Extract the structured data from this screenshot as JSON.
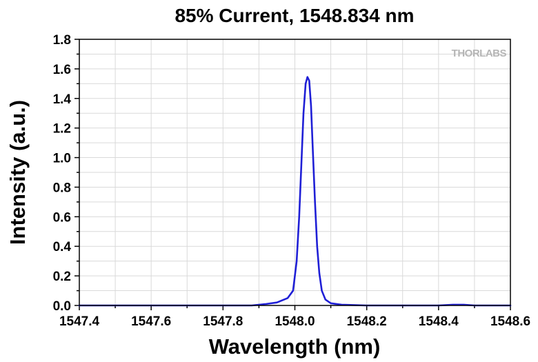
{
  "chart_data": {
    "type": "line",
    "title": "85% Current, 1548.834 nm",
    "xlabel": "Wavelength (nm)",
    "ylabel": "Intensity (a.u.)",
    "xlim": [
      1547.4,
      1548.6
    ],
    "ylim": [
      0.0,
      1.8
    ],
    "x_ticks": [
      "1547.4",
      "1547.6",
      "1547.8",
      "1548.0",
      "1548.2",
      "1548.4",
      "1548.6"
    ],
    "y_ticks": [
      "0.0",
      "0.2",
      "0.4",
      "0.6",
      "0.8",
      "1.0",
      "1.2",
      "1.4",
      "1.6",
      "1.8"
    ],
    "grid": true,
    "watermark": "THORLABS",
    "colors": {
      "line": "#1f1fd6",
      "grid": "#d9d9d9",
      "watermark": "#b5b5b5"
    },
    "series": [
      {
        "x": [
          1547.4,
          1547.6,
          1547.8,
          1547.88,
          1547.92,
          1547.95,
          1547.98,
          1547.995,
          1548.005,
          1548.012,
          1548.018,
          1548.024,
          1548.03,
          1548.035,
          1548.04,
          1548.045,
          1548.05,
          1548.056,
          1548.062,
          1548.068,
          1548.075,
          1548.085,
          1548.1,
          1548.13,
          1548.2,
          1548.3,
          1548.4,
          1548.44,
          1548.47,
          1548.5,
          1548.6
        ],
        "y": [
          0.0,
          0.0,
          0.0,
          0.0,
          0.01,
          0.02,
          0.05,
          0.1,
          0.3,
          0.6,
          0.95,
          1.3,
          1.5,
          1.545,
          1.52,
          1.35,
          1.05,
          0.7,
          0.4,
          0.22,
          0.1,
          0.04,
          0.015,
          0.005,
          0.0,
          0.0,
          0.0,
          0.005,
          0.005,
          0.0,
          0.0
        ]
      }
    ]
  }
}
